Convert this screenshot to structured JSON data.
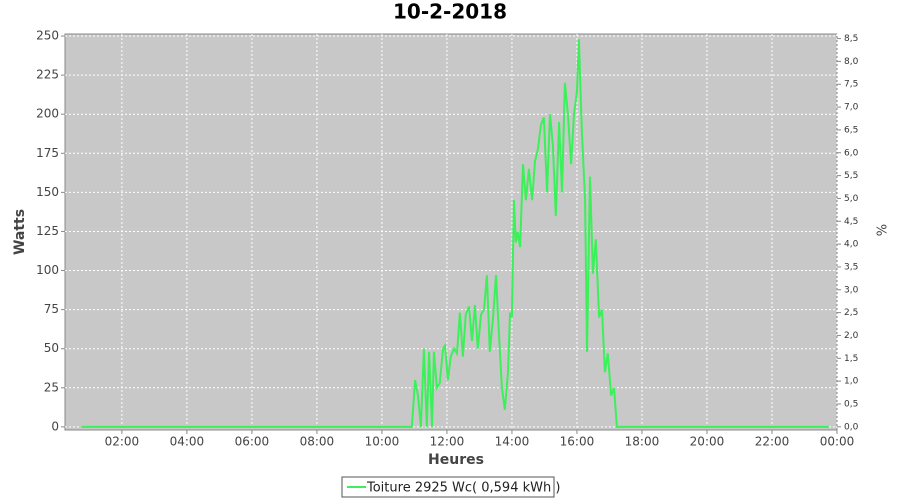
{
  "chart_data": {
    "type": "line",
    "title": "10-2-2018",
    "x_label": "Heures",
    "y_label": "Watts",
    "y2_label": "%",
    "x": [
      0.75,
      2,
      4,
      6,
      8,
      10,
      10.8,
      10.92,
      11.02,
      11.11,
      11.2,
      11.29,
      11.38,
      11.45,
      11.54,
      11.6,
      11.69,
      11.78,
      11.88,
      11.94,
      12.03,
      12.12,
      12.22,
      12.31,
      12.4,
      12.49,
      12.58,
      12.68,
      12.77,
      12.86,
      12.95,
      13.05,
      13.14,
      13.23,
      13.32,
      13.42,
      13.51,
      13.6,
      13.69,
      13.78,
      13.88,
      13.94,
      14.0,
      14.06,
      14.12,
      14.18,
      14.25,
      14.34,
      14.43,
      14.52,
      14.62,
      14.71,
      14.8,
      14.89,
      14.98,
      15.08,
      15.17,
      15.26,
      15.35,
      15.45,
      15.54,
      15.63,
      15.72,
      15.82,
      15.91,
      16.0,
      16.06,
      16.15,
      16.25,
      16.31,
      16.4,
      16.49,
      16.58,
      16.68,
      16.77,
      16.86,
      16.95,
      17.05,
      17.14,
      17.23,
      17.5,
      20,
      22,
      23.75
    ],
    "series": [
      {
        "name": "Toiture 2925 Wc( 0,594 kWh )",
        "color": "#3cf05a",
        "values": [
          0,
          0,
          0,
          0,
          0,
          0,
          0,
          0,
          30,
          20,
          0,
          50,
          0,
          48,
          0,
          48,
          25,
          28,
          50,
          52,
          30,
          45,
          50,
          47,
          73,
          45,
          72,
          77,
          55,
          78,
          50,
          72,
          75,
          97,
          48,
          70,
          97,
          60,
          25,
          11,
          35,
          73,
          70,
          145,
          118,
          125,
          115,
          168,
          145,
          165,
          145,
          170,
          178,
          193,
          198,
          150,
          200,
          180,
          135,
          195,
          150,
          220,
          200,
          168,
          200,
          215,
          248,
          190,
          145,
          48,
          160,
          98,
          120,
          70,
          75,
          35,
          47,
          20,
          25,
          0,
          0,
          0,
          0,
          0
        ]
      }
    ],
    "xlim": [
      0.25,
      24.0
    ],
    "xticks": [
      {
        "value": 2,
        "label": "02:00"
      },
      {
        "value": 4,
        "label": "04:00"
      },
      {
        "value": 6,
        "label": "06:00"
      },
      {
        "value": 8,
        "label": "08:00"
      },
      {
        "value": 10,
        "label": "10:00"
      },
      {
        "value": 12,
        "label": "12:00"
      },
      {
        "value": 14,
        "label": "14:00"
      },
      {
        "value": 16,
        "label": "16:00"
      },
      {
        "value": 18,
        "label": "18:00"
      },
      {
        "value": 20,
        "label": "20:00"
      },
      {
        "value": 22,
        "label": "22:00"
      },
      {
        "value": 24,
        "label": "00:00"
      }
    ],
    "ylim": [
      -2,
      251.3
    ],
    "yticks": [
      0,
      25,
      50,
      75,
      100,
      125,
      150,
      175,
      200,
      225,
      250
    ],
    "y2lim": [
      -0.07,
      8.6
    ],
    "y2ticks": [
      {
        "value": 0,
        "label": "0,0"
      },
      {
        "value": 0.5,
        "label": "0,5"
      },
      {
        "value": 1,
        "label": "1,0"
      },
      {
        "value": 1.5,
        "label": "1,5"
      },
      {
        "value": 2,
        "label": "2,0"
      },
      {
        "value": 2.5,
        "label": "2,5"
      },
      {
        "value": 3,
        "label": "3,0"
      },
      {
        "value": 3.5,
        "label": "3,5"
      },
      {
        "value": 4,
        "label": "4,0"
      },
      {
        "value": 4.5,
        "label": "4,5"
      },
      {
        "value": 5,
        "label": "5,0"
      },
      {
        "value": 5.5,
        "label": "5,5"
      },
      {
        "value": 6,
        "label": "6,0"
      },
      {
        "value": 6.5,
        "label": "6,5"
      },
      {
        "value": 7,
        "label": "7,0"
      },
      {
        "value": 7.5,
        "label": "7,5"
      },
      {
        "value": 8,
        "label": "8,0"
      },
      {
        "value": 8.5,
        "label": "8,5"
      }
    ],
    "grid": true
  }
}
